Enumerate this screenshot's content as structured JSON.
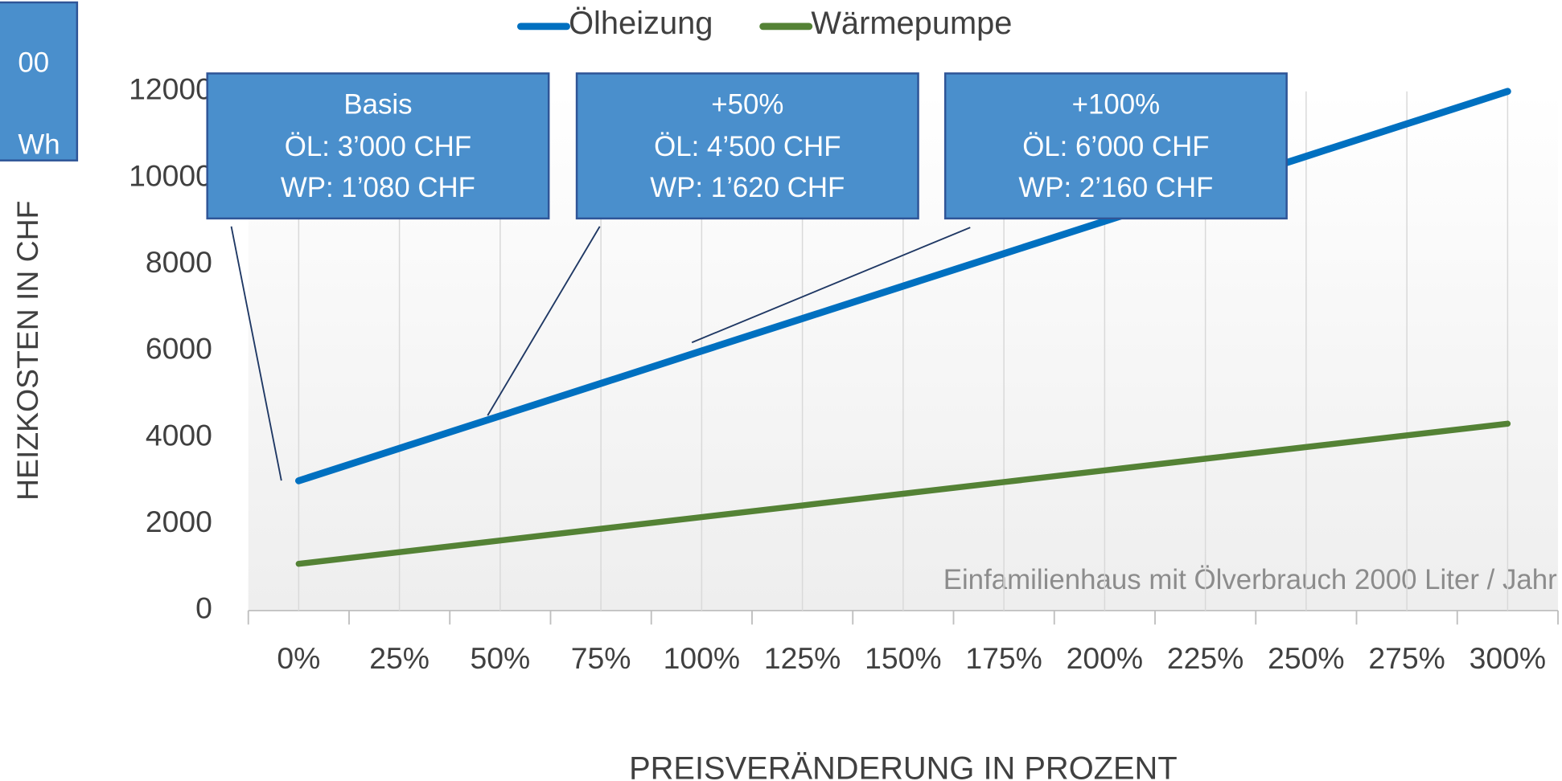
{
  "chart_data": {
    "type": "line",
    "legend": "top",
    "grid": true,
    "y_label": "HEIZKOSTEN IN CHF",
    "x_label": "PREISVERÄNDERUNG IN PROZENT",
    "note": "Einfamilienhaus mit Ölverbrauch 2000 Liter / Jahr",
    "categories": [
      "0%",
      "25%",
      "50%",
      "75%",
      "100%",
      "125%",
      "150%",
      "175%",
      "200%",
      "225%",
      "250%",
      "275%",
      "300%"
    ],
    "series": [
      {
        "name": "Ölheizung",
        "color": "#0070c0",
        "values": [
          3000,
          3750,
          4500,
          5250,
          6000,
          6750,
          7500,
          8250,
          9000,
          9750,
          10500,
          11250,
          12000
        ]
      },
      {
        "name": "Wärmepumpe",
        "color": "#548235",
        "values": [
          1080,
          1350,
          1620,
          1890,
          2160,
          2430,
          2700,
          2970,
          3240,
          3510,
          3780,
          4050,
          4320
        ]
      }
    ],
    "ylim": [
      0,
      12000
    ],
    "yticks": [
      0,
      2000,
      4000,
      6000,
      8000,
      10000,
      12000
    ],
    "annotations": [
      {
        "lines": [
          "00",
          "Wh"
        ]
      },
      {
        "lines": [
          "Basis",
          "ÖL: 3’000 CHF",
          "WP: 1’080 CHF"
        ]
      },
      {
        "lines": [
          "+50%",
          "ÖL: 4’500 CHF",
          "WP: 1’620 CHF"
        ]
      },
      {
        "lines": [
          "+100%",
          "ÖL: 6’000 CHF",
          "WP: 2’160 CHF"
        ]
      }
    ]
  }
}
